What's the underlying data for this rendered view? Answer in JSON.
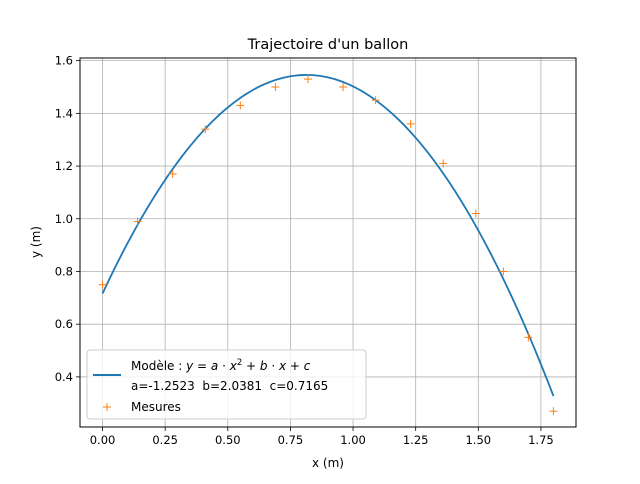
{
  "chart_data": {
    "type": "scatter",
    "title": "Trajectoire d'un ballon",
    "xlabel": "x (m)",
    "ylabel": "y (m)",
    "xlim": [
      -0.09,
      1.89
    ],
    "ylim": [
      0.21,
      1.61
    ],
    "xticks": [
      0.0,
      0.25,
      0.5,
      0.75,
      1.0,
      1.25,
      1.5,
      1.75
    ],
    "xtick_labels": [
      "0.00",
      "0.25",
      "0.50",
      "0.75",
      "1.00",
      "1.25",
      "1.50",
      "1.75"
    ],
    "yticks": [
      0.4,
      0.6,
      0.8,
      1.0,
      1.2,
      1.4,
      1.6
    ],
    "ytick_labels": [
      "0.4",
      "0.6",
      "0.8",
      "1.0",
      "1.2",
      "1.4",
      "1.6"
    ],
    "grid": true,
    "legend_position": "lower-left",
    "series": [
      {
        "name": "Modèle : y = a · x² + b · x + c",
        "name_line2": "a=-1.2523  b=2.0381  c=0.7165",
        "type": "line",
        "color": "#1f77b4",
        "coefficients": {
          "a": -1.2523,
          "b": 2.0381,
          "c": 0.7165
        },
        "x_range": [
          0.0,
          1.8
        ]
      },
      {
        "name": "Mesures",
        "type": "scatter",
        "marker": "+",
        "color": "#ff7f0e",
        "x": [
          0.0,
          0.14,
          0.28,
          0.41,
          0.55,
          0.69,
          0.82,
          0.96,
          1.09,
          1.23,
          1.36,
          1.49,
          1.6,
          1.7,
          1.8
        ],
        "y": [
          0.75,
          0.99,
          1.17,
          1.34,
          1.43,
          1.5,
          1.53,
          1.5,
          1.45,
          1.36,
          1.21,
          1.02,
          0.8,
          0.55,
          0.27
        ]
      }
    ]
  }
}
